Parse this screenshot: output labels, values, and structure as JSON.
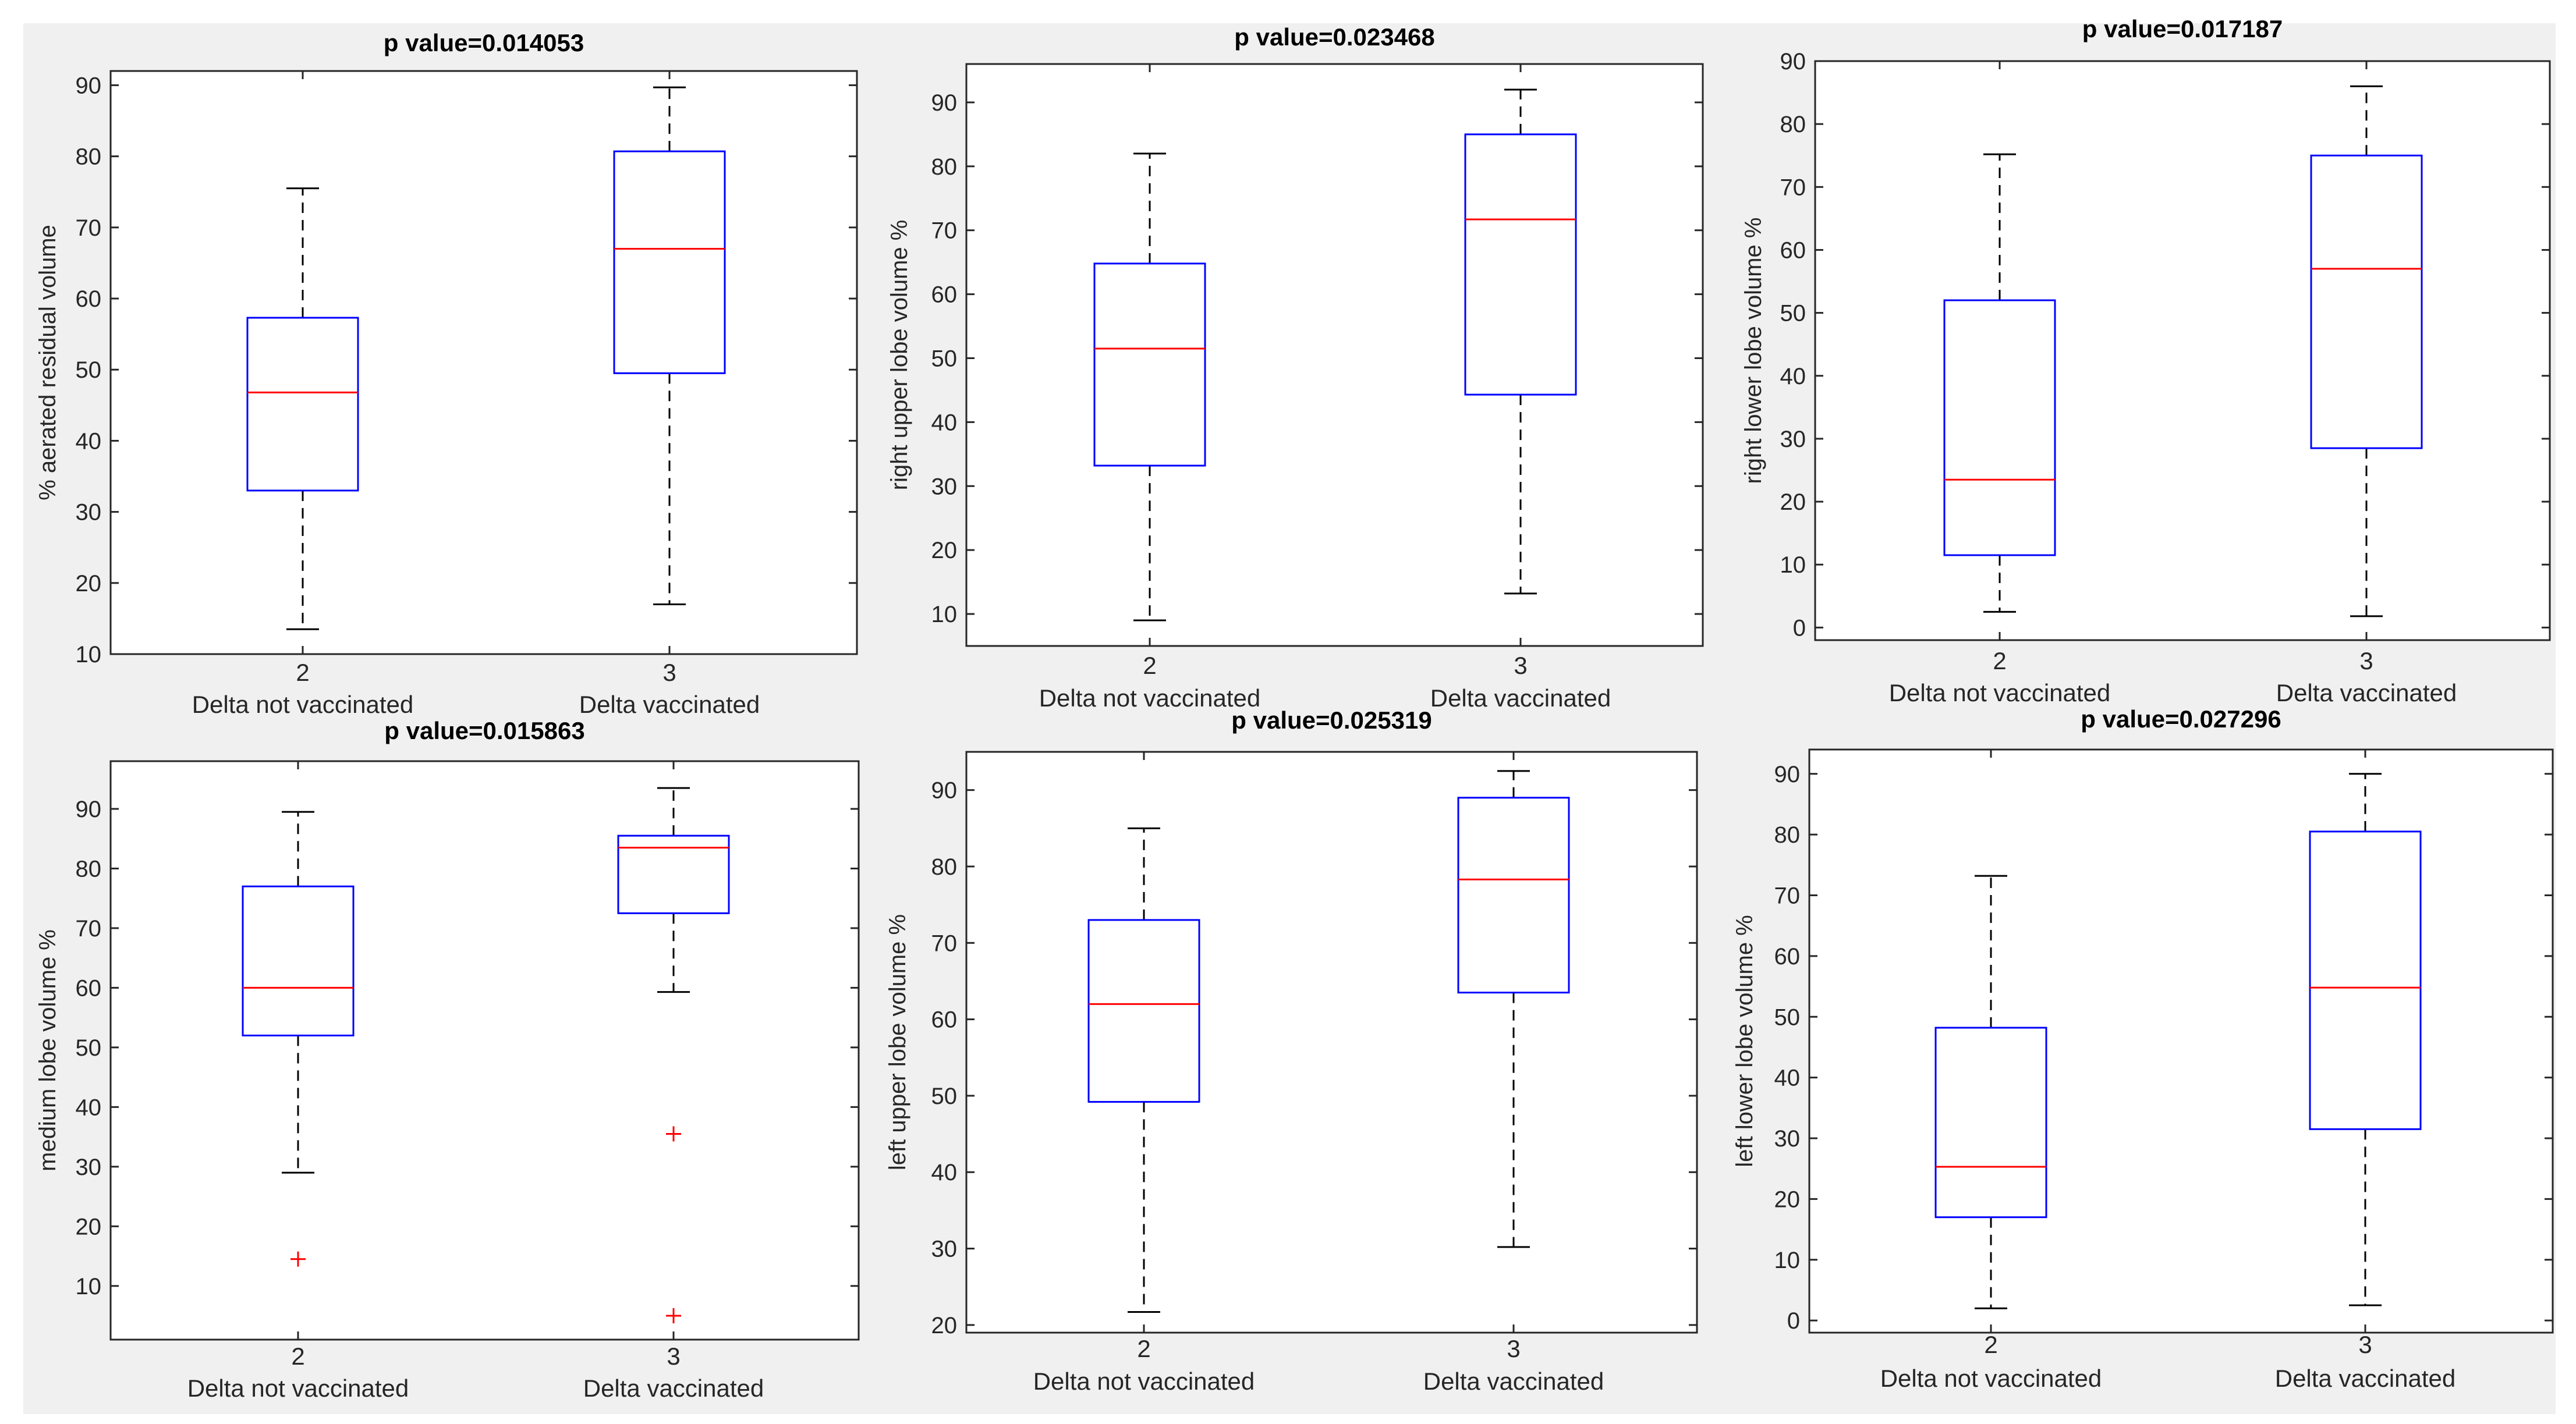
{
  "colors": {
    "box": "#0000ff",
    "median": "#ff0000",
    "whisker": "#000000",
    "outlier": "#ff0000",
    "axes": "#262626",
    "panel_background": "#f0f0f0"
  },
  "chart_data": [
    {
      "type": "box",
      "title": "p value=0.014053",
      "ylabel": "% aerated residual volume",
      "ylim": [
        10,
        92
      ],
      "yticks": [
        10,
        20,
        30,
        40,
        50,
        60,
        70,
        80,
        90
      ],
      "categories": [
        {
          "tick": "2",
          "label": "Delta not vaccinated",
          "whisker_low": 13.5,
          "q1": 33,
          "median": 46.8,
          "q3": 57.3,
          "whisker_high": 75.5,
          "outliers": []
        },
        {
          "tick": "3",
          "label": "Delta vaccinated",
          "whisker_low": 17,
          "q1": 49.5,
          "median": 67,
          "q3": 80.7,
          "whisker_high": 89.7,
          "outliers": []
        }
      ]
    },
    {
      "type": "box",
      "title": "p value=0.023468",
      "ylabel": "right upper lobe volume %",
      "ylim": [
        5,
        96
      ],
      "yticks": [
        10,
        20,
        30,
        40,
        50,
        60,
        70,
        80,
        90
      ],
      "categories": [
        {
          "tick": "2",
          "label": "Delta not vaccinated",
          "whisker_low": 9,
          "q1": 33.2,
          "median": 51.5,
          "q3": 64.8,
          "whisker_high": 82,
          "outliers": []
        },
        {
          "tick": "3",
          "label": "Delta vaccinated",
          "whisker_low": 13.2,
          "q1": 44.3,
          "median": 71.7,
          "q3": 85,
          "whisker_high": 92,
          "outliers": []
        }
      ]
    },
    {
      "type": "box",
      "title": "p value=0.017187",
      "ylabel": "right lower lobe volume %",
      "ylim": [
        -2,
        90
      ],
      "yticks": [
        0,
        10,
        20,
        30,
        40,
        50,
        60,
        70,
        80,
        90
      ],
      "categories": [
        {
          "tick": "2",
          "label": "Delta not vaccinated",
          "whisker_low": 2.5,
          "q1": 11.5,
          "median": 23.5,
          "q3": 52,
          "whisker_high": 75.2,
          "outliers": []
        },
        {
          "tick": "3",
          "label": "Delta vaccinated",
          "whisker_low": 1.8,
          "q1": 28.5,
          "median": 57,
          "q3": 75,
          "whisker_high": 86,
          "outliers": []
        }
      ]
    },
    {
      "type": "box",
      "title": "p value=0.015863",
      "ylabel": "medium lobe volume %",
      "ylim": [
        1,
        98
      ],
      "yticks": [
        10,
        20,
        30,
        40,
        50,
        60,
        70,
        80,
        90
      ],
      "categories": [
        {
          "tick": "2",
          "label": "Delta not vaccinated",
          "whisker_low": 29,
          "q1": 52,
          "median": 60,
          "q3": 77,
          "whisker_high": 89.5,
          "outliers": [
            14.5
          ]
        },
        {
          "tick": "3",
          "label": "Delta vaccinated",
          "whisker_low": 59.3,
          "q1": 72.5,
          "median": 83.5,
          "q3": 85.5,
          "whisker_high": 93.5,
          "outliers": [
            35.5,
            5
          ]
        }
      ]
    },
    {
      "type": "box",
      "title": "p value=0.025319",
      "ylabel": "left upper lobe volume %",
      "ylim": [
        19,
        95
      ],
      "yticks": [
        20,
        30,
        40,
        50,
        60,
        70,
        80,
        90
      ],
      "categories": [
        {
          "tick": "2",
          "label": "Delta not vaccinated",
          "whisker_low": 21.7,
          "q1": 49.2,
          "median": 62,
          "q3": 73,
          "whisker_high": 85,
          "outliers": []
        },
        {
          "tick": "3",
          "label": "Delta vaccinated",
          "whisker_low": 30.2,
          "q1": 63.5,
          "median": 78.3,
          "q3": 89,
          "whisker_high": 92.5,
          "outliers": []
        }
      ]
    },
    {
      "type": "box",
      "title": "p value=0.027296",
      "ylabel": "left lower lobe volume %",
      "ylim": [
        -2,
        94
      ],
      "yticks": [
        0,
        10,
        20,
        30,
        40,
        50,
        60,
        70,
        80,
        90
      ],
      "categories": [
        {
          "tick": "2",
          "label": "Delta not vaccinated",
          "whisker_low": 2,
          "q1": 17,
          "median": 25.3,
          "q3": 48.2,
          "whisker_high": 73.2,
          "outliers": []
        },
        {
          "tick": "3",
          "label": "Delta vaccinated",
          "whisker_low": 2.5,
          "q1": 31.5,
          "median": 54.8,
          "q3": 80.5,
          "whisker_high": 90,
          "outliers": []
        }
      ]
    }
  ]
}
